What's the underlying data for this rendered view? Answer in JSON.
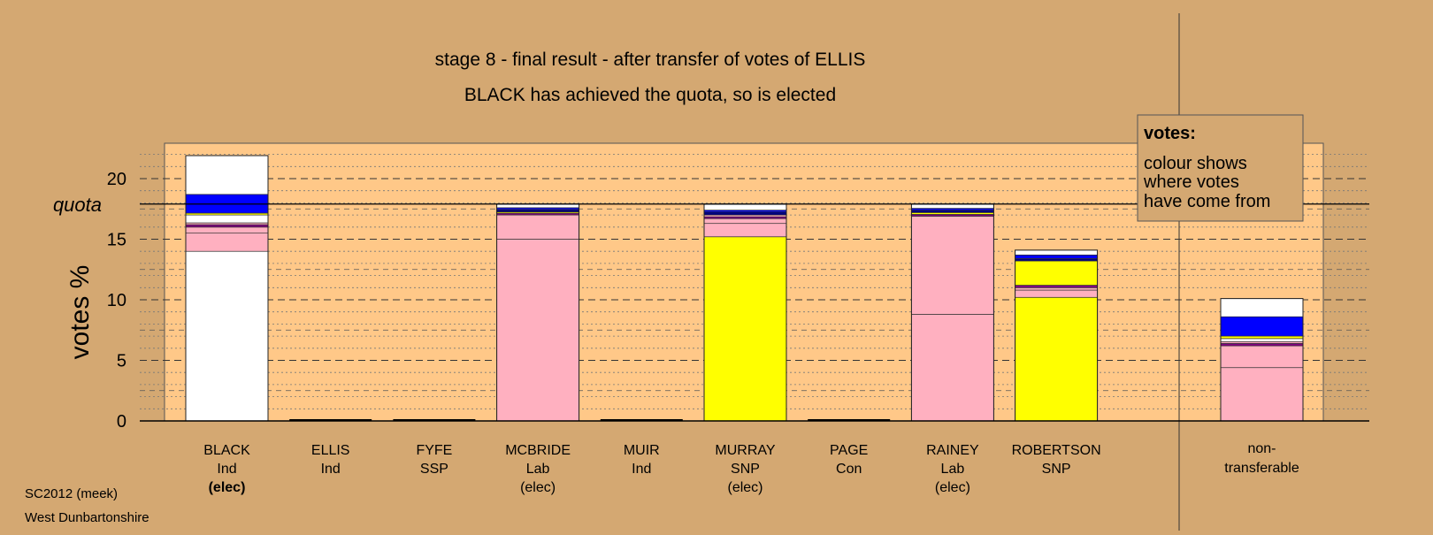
{
  "chart_data": {
    "type": "bar",
    "stacked": true,
    "title": "stage 8 - final result - after transfer of votes of ELLIS",
    "subtitle": "BLACK has achieved the quota, so is elected",
    "ylabel": "votes %",
    "ylim": [
      0,
      22.5
    ],
    "yticks": [
      "0",
      "5",
      "10",
      "15",
      "20"
    ],
    "quota": 17.9,
    "quota_label": "quota",
    "grid": true,
    "candidates": [
      {
        "name": "BLACK",
        "party": "Ind",
        "status": "(elec)",
        "status_bold": true,
        "segments": [
          {
            "color": "#ffffff",
            "from": 0,
            "to": 14.0
          },
          {
            "color": "#ffb0c0",
            "from": 14.0,
            "to": 15.5
          },
          {
            "color": "#ffb0c0",
            "from": 15.5,
            "to": 16.0
          },
          {
            "color": "#800080",
            "from": 16.0,
            "to": 16.2
          },
          {
            "color": "#ffb0c0",
            "from": 16.2,
            "to": 16.35
          },
          {
            "color": "#ffffff",
            "from": 16.35,
            "to": 17.0
          },
          {
            "color": "#ffff00",
            "from": 17.0,
            "to": 17.15
          },
          {
            "color": "#0000ff",
            "from": 17.15,
            "to": 18.7
          },
          {
            "color": "#ffffff",
            "from": 18.7,
            "to": 21.9
          }
        ]
      },
      {
        "name": "ELLIS",
        "party": "Ind",
        "status": "",
        "status_bold": false,
        "segments": []
      },
      {
        "name": "FYFE",
        "party": "SSP",
        "status": "",
        "status_bold": false,
        "segments": []
      },
      {
        "name": "MCBRIDE",
        "party": "Lab",
        "status": "(elec)",
        "status_bold": false,
        "segments": [
          {
            "color": "#ffb0c0",
            "from": 0,
            "to": 15.0
          },
          {
            "color": "#ffb0c0",
            "from": 15.0,
            "to": 17.0
          },
          {
            "color": "#800080",
            "from": 17.0,
            "to": 17.15
          },
          {
            "color": "#ffff00",
            "from": 17.15,
            "to": 17.25
          },
          {
            "color": "#000080",
            "from": 17.25,
            "to": 17.45
          },
          {
            "color": "#0000ff",
            "from": 17.45,
            "to": 17.6
          },
          {
            "color": "#ffffff",
            "from": 17.6,
            "to": 17.9
          }
        ]
      },
      {
        "name": "MUIR",
        "party": "Ind",
        "status": "",
        "status_bold": false,
        "segments": []
      },
      {
        "name": "MURRAY",
        "party": "SNP",
        "status": "(elec)",
        "status_bold": false,
        "segments": [
          {
            "color": "#ffff00",
            "from": 0,
            "to": 15.2
          },
          {
            "color": "#ffb0c0",
            "from": 15.2,
            "to": 16.3
          },
          {
            "color": "#ffb0c0",
            "from": 16.3,
            "to": 16.7
          },
          {
            "color": "#800080",
            "from": 16.7,
            "to": 16.85
          },
          {
            "color": "#ffb0c0",
            "from": 16.85,
            "to": 17.0
          },
          {
            "color": "#000080",
            "from": 17.0,
            "to": 17.25
          },
          {
            "color": "#0000ff",
            "from": 17.25,
            "to": 17.4
          },
          {
            "color": "#ffffff",
            "from": 17.4,
            "to": 17.9
          }
        ]
      },
      {
        "name": "PAGE",
        "party": "Con",
        "status": "",
        "status_bold": false,
        "segments": []
      },
      {
        "name": "RAINEY",
        "party": "Lab",
        "status": "(elec)",
        "status_bold": false,
        "segments": [
          {
            "color": "#ffb0c0",
            "from": 0,
            "to": 8.8
          },
          {
            "color": "#ffb0c0",
            "from": 8.8,
            "to": 16.9
          },
          {
            "color": "#800080",
            "from": 16.9,
            "to": 17.05
          },
          {
            "color": "#ffff00",
            "from": 17.05,
            "to": 17.2
          },
          {
            "color": "#000080",
            "from": 17.2,
            "to": 17.4
          },
          {
            "color": "#0000ff",
            "from": 17.4,
            "to": 17.55
          },
          {
            "color": "#ffffff",
            "from": 17.55,
            "to": 17.9
          }
        ]
      },
      {
        "name": "ROBERTSON",
        "party": "SNP",
        "status": "",
        "status_bold": false,
        "segments": [
          {
            "color": "#ffff00",
            "from": 0,
            "to": 10.2
          },
          {
            "color": "#ffb0c0",
            "from": 10.2,
            "to": 10.8
          },
          {
            "color": "#ffb0c0",
            "from": 10.8,
            "to": 11.0
          },
          {
            "color": "#800080",
            "from": 11.0,
            "to": 11.2
          },
          {
            "color": "#ffff00",
            "from": 11.2,
            "to": 13.2
          },
          {
            "color": "#000080",
            "from": 13.2,
            "to": 13.4
          },
          {
            "color": "#0000ff",
            "from": 13.4,
            "to": 13.7
          },
          {
            "color": "#ffffff",
            "from": 13.7,
            "to": 14.1
          }
        ]
      }
    ],
    "non_transferable": {
      "label_line1": "non-",
      "label_line2": "transferable",
      "segments": [
        {
          "color": "#ffb0c0",
          "from": 0,
          "to": 4.4
        },
        {
          "color": "#ffb0c0",
          "from": 4.4,
          "to": 6.2
        },
        {
          "color": "#800080",
          "from": 6.2,
          "to": 6.4
        },
        {
          "color": "#ffb0c0",
          "from": 6.4,
          "to": 6.55
        },
        {
          "color": "#ffffff",
          "from": 6.55,
          "to": 6.8
        },
        {
          "color": "#ffff00",
          "from": 6.8,
          "to": 7.0
        },
        {
          "color": "#0000ff",
          "from": 7.0,
          "to": 8.6
        },
        {
          "color": "#ffffff",
          "from": 8.6,
          "to": 10.1
        }
      ]
    },
    "legend": {
      "title": "votes:",
      "lines": [
        "colour shows",
        "where votes",
        "have come from"
      ],
      "placement": "top-right"
    }
  },
  "footer": {
    "source": "SC2012 (meek)",
    "ward": "West Dunbartonshire"
  },
  "colors": {
    "background": "#d4a872",
    "plot_area": "#ffc888",
    "axis": "#000000"
  }
}
